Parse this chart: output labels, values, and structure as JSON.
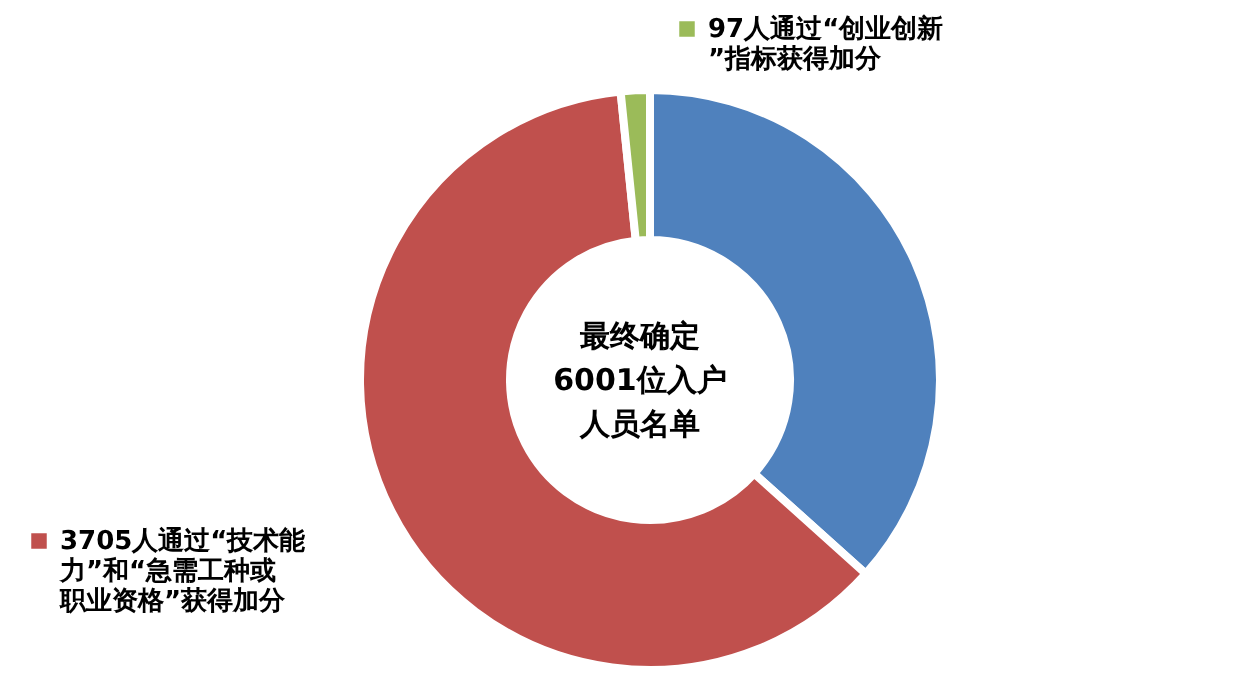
{
  "chart_data": {
    "type": "donut",
    "categories": [
      null,
      "通过“技术能力”和“急需工种或职业资格”获得加分",
      "通过“创业创新”指标获得加分"
    ],
    "values": [
      2199,
      3705,
      97
    ],
    "value_labels": [
      null,
      "3705人",
      "97人"
    ],
    "colors": [
      "#4f81bd",
      "#c0504d",
      "#9bbb59"
    ],
    "annotations": [
      "最终确定",
      "6001位入户",
      "人员名单"
    ],
    "legend": "top left"
  }
}
